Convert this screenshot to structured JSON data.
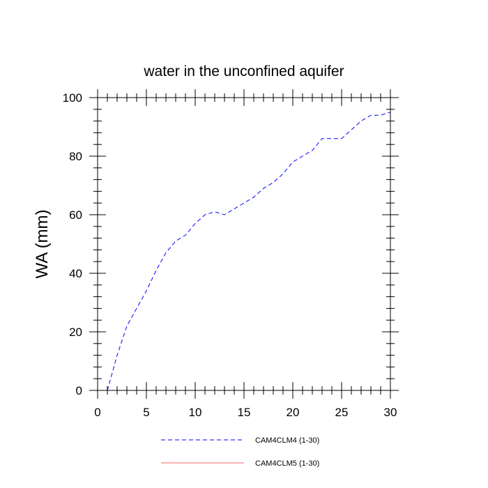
{
  "chart_data": {
    "type": "line",
    "title": "water in the unconfined aquifer",
    "xlabel": "",
    "ylabel": "WA  (mm)",
    "xlim": [
      0,
      30
    ],
    "ylim": [
      0,
      100
    ],
    "x_ticks": [
      0,
      5,
      10,
      15,
      20,
      25,
      30
    ],
    "y_ticks": [
      0,
      20,
      40,
      60,
      80,
      100
    ],
    "grid": false,
    "legend_position": "bottom",
    "x": [
      1,
      2,
      3,
      4,
      5,
      6,
      7,
      8,
      9,
      10,
      11,
      12,
      13,
      14,
      15,
      16,
      17,
      18,
      19,
      20,
      21,
      22,
      23,
      24,
      25,
      26,
      27,
      28,
      29,
      30
    ],
    "series": [
      {
        "name": "CAM4CLM4 (1-30)",
        "color": "#0000ff",
        "dash": "dashed",
        "values": [
          0,
          12,
          22,
          28,
          34,
          41,
          47,
          51,
          53,
          57,
          60,
          61,
          60,
          62,
          64,
          66,
          69,
          71,
          74,
          78,
          80,
          82,
          86,
          86,
          86,
          89,
          92,
          94,
          94,
          95
        ]
      },
      {
        "name": "CAM4CLM5 (1-30)",
        "color": "#ff0000",
        "dash": "solid",
        "values": [
          0,
          0,
          0,
          0,
          0,
          0,
          0,
          0,
          0,
          0,
          0,
          0,
          0,
          0,
          0,
          0,
          0,
          0,
          0,
          0,
          0,
          0,
          0,
          0,
          0,
          0,
          0,
          0,
          0,
          0
        ]
      }
    ]
  }
}
